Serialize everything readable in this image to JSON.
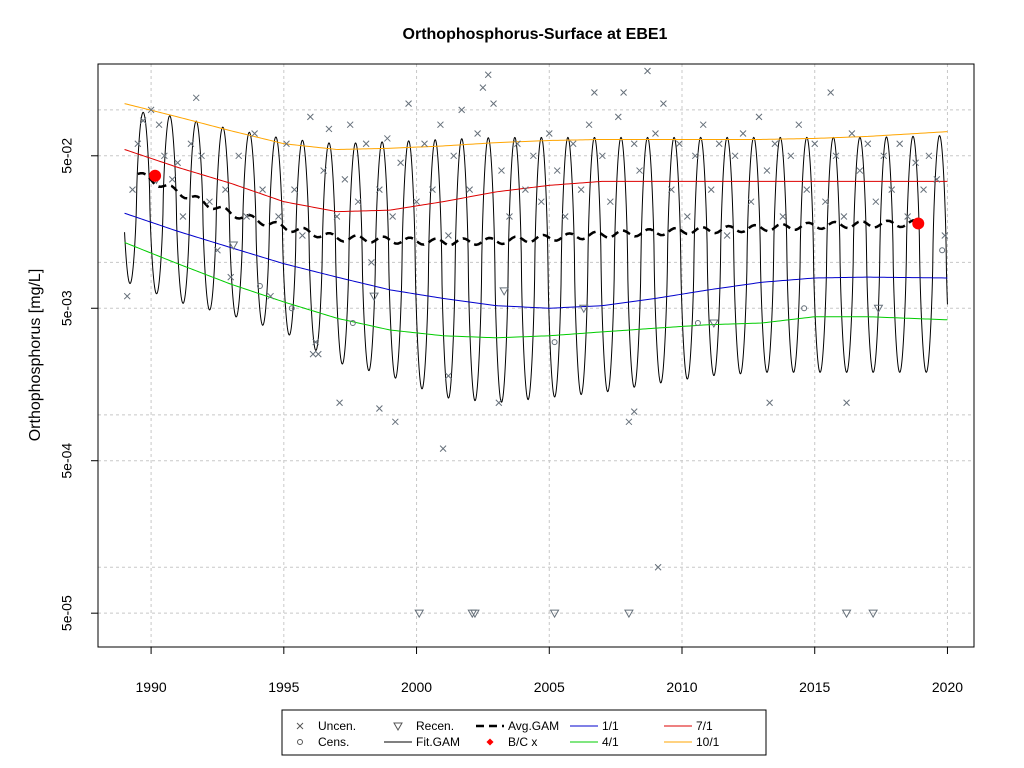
{
  "chart_data": {
    "type": "line",
    "title": "Orthophosphorus-Surface at EBE1",
    "xlabel": "",
    "ylabel": "Orthophosphorus [mg/L]",
    "xlim": [
      1988,
      2021
    ],
    "ylim": [
      3e-05,
      0.2
    ],
    "yscale": "log",
    "grid": true,
    "legend_position": "bottom",
    "x_ticks": [
      1990,
      1995,
      2000,
      2005,
      2010,
      2015,
      2020
    ],
    "y_tick_labels": [
      {
        "label": "5e-05",
        "value": 5e-05
      },
      {
        "label": "5e-04",
        "value": 0.0005
      },
      {
        "label": "5e-03",
        "value": 0.005
      },
      {
        "label": "5e-02",
        "value": 0.05
      }
    ],
    "y_grid_values": [
      1e-05,
      5e-05,
      0.0001,
      0.0005,
      0.001,
      0.005,
      0.01,
      0.05,
      0.1
    ],
    "series": [
      {
        "name": "Avg.GAM",
        "color": "#000000",
        "style": "dashed-thick",
        "x": [
          1989.5,
          1991,
          1993,
          1995,
          1997,
          1999,
          2001,
          2003,
          2005,
          2007,
          2009,
          2011,
          2013,
          2015,
          2017,
          2018.9
        ],
        "y": [
          0.038,
          0.029,
          0.021,
          0.017,
          0.0145,
          0.014,
          0.0136,
          0.0138,
          0.0145,
          0.0152,
          0.0158,
          0.0163,
          0.0168,
          0.0174,
          0.0178,
          0.018
        ]
      },
      {
        "name": "1/1",
        "color": "#0000cc",
        "style": "solid",
        "x": [
          1989,
          1991,
          1993,
          1995,
          1997,
          1999,
          2001,
          2003,
          2005,
          2007,
          2009,
          2011,
          2013,
          2015,
          2017,
          2020
        ],
        "y": [
          0.021,
          0.016,
          0.0125,
          0.0098,
          0.008,
          0.0066,
          0.0058,
          0.0052,
          0.005,
          0.0052,
          0.0058,
          0.0066,
          0.0074,
          0.0079,
          0.008,
          0.0079
        ]
      },
      {
        "name": "4/1",
        "color": "#00cc00",
        "style": "solid",
        "x": [
          1989,
          1991,
          1993,
          1995,
          1997,
          1999,
          2001,
          2003,
          2005,
          2007,
          2009,
          2011,
          2013,
          2015,
          2017,
          2020
        ],
        "y": [
          0.0135,
          0.0098,
          0.0072,
          0.0055,
          0.0043,
          0.0036,
          0.0033,
          0.0032,
          0.0033,
          0.0035,
          0.0037,
          0.0039,
          0.004,
          0.0044,
          0.0044,
          0.0042
        ]
      },
      {
        "name": "7/1",
        "color": "#dd0000",
        "style": "solid",
        "x": [
          1989,
          1991,
          1993,
          1995,
          1997,
          1999,
          2001,
          2003,
          2005,
          2007,
          2009,
          2011,
          2013,
          2015,
          2017,
          2020
        ],
        "y": [
          0.055,
          0.042,
          0.033,
          0.025,
          0.0215,
          0.022,
          0.025,
          0.029,
          0.032,
          0.034,
          0.034,
          0.034,
          0.034,
          0.034,
          0.034,
          0.034
        ]
      },
      {
        "name": "10/1",
        "color": "#ffa500",
        "style": "solid",
        "x": [
          1989,
          1991,
          1993,
          1995,
          1997,
          1999,
          2001,
          2003,
          2005,
          2007,
          2009,
          2011,
          2013,
          2015,
          2017,
          2020
        ],
        "y": [
          0.11,
          0.09,
          0.073,
          0.06,
          0.055,
          0.056,
          0.058,
          0.061,
          0.063,
          0.064,
          0.064,
          0.064,
          0.064,
          0.065,
          0.067,
          0.072
        ]
      },
      {
        "name": "Fit.GAM",
        "color": "#000000",
        "style": "seasonal",
        "x": [
          1989,
          1991,
          1993,
          1995,
          1997,
          1999,
          2001,
          2003,
          2005,
          2007,
          2009,
          2011,
          2013,
          2015,
          2017,
          2020
        ],
        "y_high": [
          0.1,
          0.09,
          0.075,
          0.065,
          0.06,
          0.062,
          0.064,
          0.066,
          0.066,
          0.066,
          0.066,
          0.066,
          0.066,
          0.066,
          0.066,
          0.068
        ],
        "y_low": [
          0.0075,
          0.0055,
          0.0045,
          0.0035,
          0.0022,
          0.0018,
          0.0013,
          0.0012,
          0.0013,
          0.0014,
          0.0016,
          0.0018,
          0.0019,
          0.0019,
          0.0019,
          0.0019
        ]
      }
    ],
    "bc_points": [
      {
        "x": 1990.15,
        "y": 0.037
      },
      {
        "x": 2018.9,
        "y": 0.018
      }
    ],
    "uncensored": [
      [
        1989.1,
        0.006
      ],
      [
        1989.3,
        0.03
      ],
      [
        1989.5,
        0.06
      ],
      [
        1989.7,
        0.085
      ],
      [
        1990,
        0.1
      ],
      [
        1990.3,
        0.08
      ],
      [
        1990.5,
        0.05
      ],
      [
        1990.8,
        0.035
      ],
      [
        1991,
        0.045
      ],
      [
        1991.2,
        0.02
      ],
      [
        1991.5,
        0.06
      ],
      [
        1991.7,
        0.12
      ],
      [
        1991.9,
        0.05
      ],
      [
        1992.2,
        0.025
      ],
      [
        1992.5,
        0.012
      ],
      [
        1992.8,
        0.03
      ],
      [
        1993,
        0.008
      ],
      [
        1993.3,
        0.05
      ],
      [
        1993.6,
        0.02
      ],
      [
        1993.9,
        0.07
      ],
      [
        1994.2,
        0.03
      ],
      [
        1994.5,
        0.006
      ],
      [
        1994.8,
        0.02
      ],
      [
        1995.1,
        0.06
      ],
      [
        1995.4,
        0.03
      ],
      [
        1995.7,
        0.015
      ],
      [
        1996,
        0.09
      ],
      [
        1996.2,
        0.003
      ],
      [
        1996.5,
        0.04
      ],
      [
        1996.7,
        0.075
      ],
      [
        1997,
        0.02
      ],
      [
        1997.3,
        0.035
      ],
      [
        1997.5,
        0.08
      ],
      [
        1997.8,
        0.025
      ],
      [
        1998.1,
        0.06
      ],
      [
        1998.3,
        0.01
      ],
      [
        1998.6,
        0.03
      ],
      [
        1998.9,
        0.065
      ],
      [
        1999.1,
        0.02
      ],
      [
        1999.4,
        0.045
      ],
      [
        1999.7,
        0.11
      ],
      [
        2000,
        0.025
      ],
      [
        2000.3,
        0.06
      ],
      [
        2000.6,
        0.03
      ],
      [
        2000.9,
        0.08
      ],
      [
        2001.2,
        0.015
      ],
      [
        2001.4,
        0.05
      ],
      [
        2001.7,
        0.1
      ],
      [
        2002,
        0.03
      ],
      [
        2002.3,
        0.07
      ],
      [
        2002.5,
        0.14
      ],
      [
        2002.7,
        0.17
      ],
      [
        2002.9,
        0.11
      ],
      [
        2003.2,
        0.04
      ],
      [
        2003.5,
        0.02
      ],
      [
        2003.8,
        0.06
      ],
      [
        2004.1,
        0.03
      ],
      [
        2004.4,
        0.05
      ],
      [
        2004.7,
        0.025
      ],
      [
        2005,
        0.07
      ],
      [
        2005.3,
        0.04
      ],
      [
        2005.6,
        0.02
      ],
      [
        2005.9,
        0.06
      ],
      [
        2006.2,
        0.03
      ],
      [
        2006.5,
        0.08
      ],
      [
        2006.7,
        0.13
      ],
      [
        2007,
        0.05
      ],
      [
        2007.3,
        0.025
      ],
      [
        2007.6,
        0.09
      ],
      [
        2007.8,
        0.13
      ],
      [
        2008.2,
        0.06
      ],
      [
        2008.4,
        0.04
      ],
      [
        2008.7,
        0.18
      ],
      [
        2009,
        0.07
      ],
      [
        2009.3,
        0.11
      ],
      [
        2009.6,
        0.03
      ],
      [
        2009.9,
        0.06
      ],
      [
        2010.2,
        0.02
      ],
      [
        2010.5,
        0.05
      ],
      [
        2010.8,
        0.08
      ],
      [
        2011.1,
        0.03
      ],
      [
        2011.4,
        0.06
      ],
      [
        2011.7,
        0.015
      ],
      [
        2012,
        0.05
      ],
      [
        2012.3,
        0.07
      ],
      [
        2012.6,
        0.025
      ],
      [
        2012.9,
        0.09
      ],
      [
        2013.2,
        0.04
      ],
      [
        2013.5,
        0.06
      ],
      [
        2013.8,
        0.02
      ],
      [
        2014.1,
        0.05
      ],
      [
        2014.4,
        0.08
      ],
      [
        2014.7,
        0.03
      ],
      [
        2015,
        0.06
      ],
      [
        2015.4,
        0.025
      ],
      [
        2015.6,
        0.13
      ],
      [
        2015.8,
        0.05
      ],
      [
        2016.1,
        0.02
      ],
      [
        2016.4,
        0.07
      ],
      [
        2016.7,
        0.04
      ],
      [
        2017,
        0.06
      ],
      [
        2017.3,
        0.025
      ],
      [
        2017.6,
        0.05
      ],
      [
        2017.9,
        0.03
      ],
      [
        2018.2,
        0.06
      ],
      [
        2018.5,
        0.02
      ],
      [
        2018.8,
        0.045
      ],
      [
        2019.1,
        0.03
      ],
      [
        2019.3,
        0.05
      ],
      [
        2019.6,
        0.035
      ],
      [
        2019.9,
        0.015
      ],
      [
        1997.1,
        0.0012
      ],
      [
        1998.6,
        0.0011
      ],
      [
        1999.2,
        0.0009
      ],
      [
        2001,
        0.0006
      ],
      [
        2001.2,
        0.0018
      ],
      [
        2003.1,
        0.0012
      ],
      [
        2008,
        0.0009
      ],
      [
        2008.2,
        0.00105
      ],
      [
        2009.1,
        0.0001
      ],
      [
        2013.3,
        0.0012
      ],
      [
        2016.2,
        0.0012
      ],
      [
        1996.1,
        0.0025
      ],
      [
        1996.3,
        0.0025
      ]
    ],
    "censored": [
      [
        1994.1,
        0.007
      ],
      [
        1995.3,
        0.005
      ],
      [
        1997.6,
        0.004
      ],
      [
        2005.2,
        0.003
      ],
      [
        2010.6,
        0.004
      ],
      [
        2014.6,
        0.005
      ],
      [
        2019.8,
        0.012
      ]
    ],
    "recensored": [
      [
        1990.2,
        0.035
      ],
      [
        1993.1,
        0.013
      ],
      [
        1998.4,
        0.006
      ],
      [
        2003.3,
        0.0065
      ],
      [
        2006.3,
        0.005
      ],
      [
        2011.2,
        0.004
      ],
      [
        2017.4,
        0.005
      ],
      [
        2000.1,
        5e-05
      ],
      [
        2002.1,
        5e-05
      ],
      [
        2002.2,
        5e-05
      ],
      [
        2005.2,
        5e-05
      ],
      [
        2008.0,
        5e-05
      ],
      [
        2016.2,
        5e-05
      ],
      [
        2017.2,
        5e-05
      ]
    ],
    "legend": [
      {
        "label": "Uncen.",
        "symbol": "x",
        "color": "#555555"
      },
      {
        "label": "Cens.",
        "symbol": "o",
        "color": "#555555"
      },
      {
        "label": "Recen.",
        "symbol": "triangle-down",
        "color": "#555555"
      },
      {
        "label": "Fit.GAM",
        "symbol": "line",
        "color": "#000000"
      },
      {
        "label": "Avg.GAM",
        "symbol": "dashed",
        "color": "#000000"
      },
      {
        "label": "B/C x",
        "symbol": "dot",
        "color": "#ff0000"
      },
      {
        "label": "1/1",
        "symbol": "line",
        "color": "#0000cc"
      },
      {
        "label": "4/1",
        "symbol": "line",
        "color": "#00cc00"
      },
      {
        "label": "7/1",
        "symbol": "line",
        "color": "#dd0000"
      },
      {
        "label": "10/1",
        "symbol": "line",
        "color": "#ffa500"
      }
    ]
  }
}
